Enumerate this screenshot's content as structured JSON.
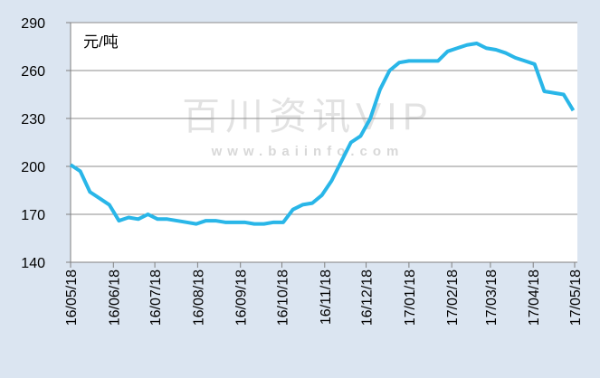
{
  "chart_data": {
    "type": "line",
    "y_unit_label": "元/吨",
    "watermark": "百川资讯VIP",
    "watermark_url": "www.baiinfo.com",
    "x": [
      "16/05/18",
      "16/05/25",
      "16/06/01",
      "16/06/08",
      "16/06/15",
      "16/06/22",
      "16/06/29",
      "16/07/06",
      "16/07/13",
      "16/07/20",
      "16/07/27",
      "16/08/03",
      "16/08/10",
      "16/08/17",
      "16/08/24",
      "16/08/31",
      "16/09/07",
      "16/09/14",
      "16/09/21",
      "16/09/28",
      "16/10/05",
      "16/10/12",
      "16/10/19",
      "16/10/26",
      "16/11/02",
      "16/11/09",
      "16/11/16",
      "16/11/23",
      "16/11/30",
      "16/12/07",
      "16/12/14",
      "16/12/21",
      "16/12/28",
      "17/01/04",
      "17/01/11",
      "17/01/18",
      "17/01/25",
      "17/02/01",
      "17/02/08",
      "17/02/15",
      "17/02/22",
      "17/03/01",
      "17/03/08",
      "17/03/15",
      "17/03/22",
      "17/03/29",
      "17/04/05",
      "17/04/12",
      "17/04/19",
      "17/04/26",
      "17/05/03",
      "17/05/10",
      "17/05/17"
    ],
    "series": [
      {
        "color": "#29b6e8",
        "values": [
          201,
          197,
          184,
          180,
          176,
          166,
          168,
          167,
          170,
          167,
          167,
          166,
          165,
          164,
          166,
          166,
          165,
          165,
          165,
          164,
          164,
          165,
          165,
          173,
          176,
          177,
          182,
          191,
          203,
          215,
          219,
          230,
          248,
          260,
          265,
          266,
          266,
          266,
          266,
          272,
          274,
          276,
          277,
          274,
          273,
          271,
          268,
          266,
          264,
          247,
          246,
          245,
          235
        ]
      }
    ],
    "xlim": [
      "16/05/18",
      "17/05/18"
    ],
    "xticks": [
      "16/05/18",
      "16/06/18",
      "16/07/18",
      "16/08/18",
      "16/09/18",
      "16/10/18",
      "16/11/18",
      "16/12/18",
      "17/01/18",
      "17/02/18",
      "17/03/18",
      "17/04/18",
      "17/05/18"
    ],
    "ylim": [
      140,
      290
    ],
    "yticks": [
      140,
      170,
      200,
      230,
      260,
      290
    ],
    "grid": true
  }
}
